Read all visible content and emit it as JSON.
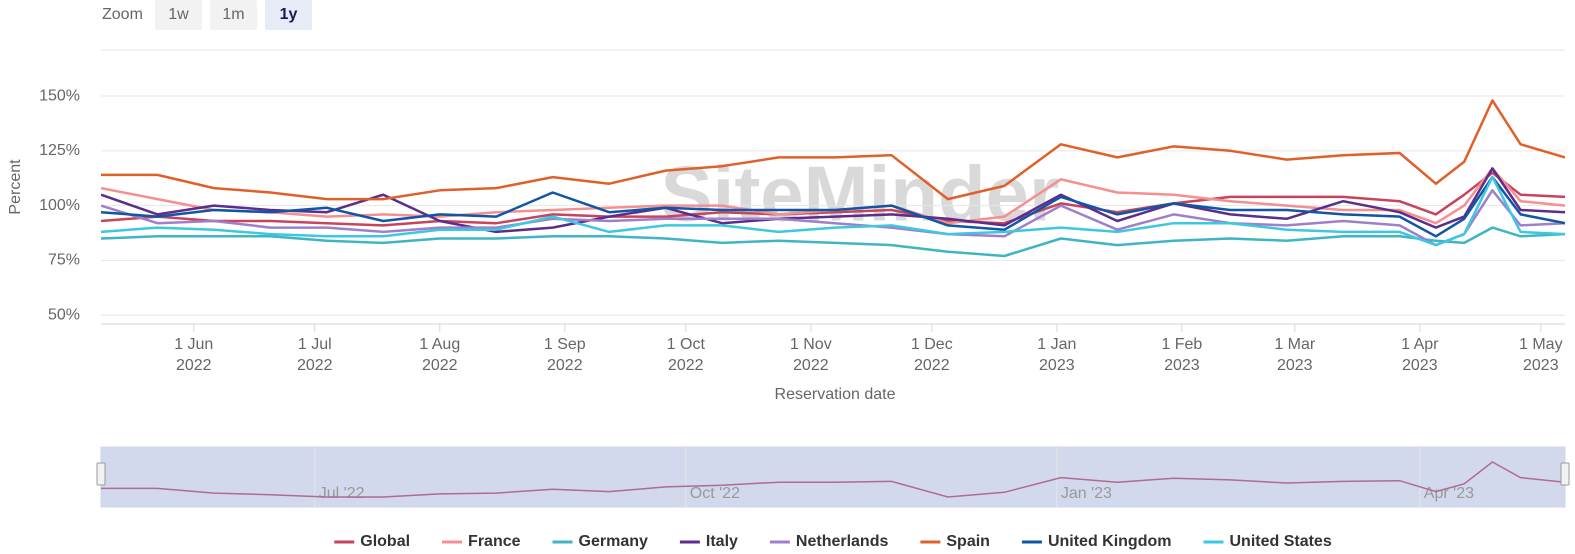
{
  "chart_data": {
    "type": "line",
    "zoom": {
      "label": "Zoom",
      "buttons": [
        "1w",
        "1m",
        "1y"
      ],
      "selected": 2
    },
    "watermark": "SiteMinder",
    "ylabel": "Percent",
    "xlabel": "Reservation date",
    "xlim": [
      "2022-05-09",
      "2023-05-07"
    ],
    "ylim": [
      46,
      171
    ],
    "yticks": [
      {
        "value": 50,
        "label": "50%"
      },
      {
        "value": 75,
        "label": "75%"
      },
      {
        "value": 100,
        "label": "100%"
      },
      {
        "value": 125,
        "label": "125%"
      },
      {
        "value": 150,
        "label": "150%"
      }
    ],
    "xticks": [
      {
        "value": "2022-06-01",
        "label": "1 Jun",
        "sublabel": "2022"
      },
      {
        "value": "2022-07-01",
        "label": "1 Jul",
        "sublabel": "2022"
      },
      {
        "value": "2022-08-01",
        "label": "1 Aug",
        "sublabel": "2022"
      },
      {
        "value": "2022-09-01",
        "label": "1 Sep",
        "sublabel": "2022"
      },
      {
        "value": "2022-10-01",
        "label": "1 Oct",
        "sublabel": "2022"
      },
      {
        "value": "2022-11-01",
        "label": "1 Nov",
        "sublabel": "2022"
      },
      {
        "value": "2022-12-01",
        "label": "1 Dec",
        "sublabel": "2022"
      },
      {
        "value": "2023-01-01",
        "label": "1 Jan",
        "sublabel": "2023"
      },
      {
        "value": "2023-02-01",
        "label": "1 Feb",
        "sublabel": "2023"
      },
      {
        "value": "2023-03-01",
        "label": "1 Mar",
        "sublabel": "2023"
      },
      {
        "value": "2023-04-01",
        "label": "1 Apr",
        "sublabel": "2023"
      },
      {
        "value": "2023-05-01",
        "label": "1 May",
        "sublabel": "2023"
      }
    ],
    "grid": true,
    "legend": "bottom",
    "x": [
      "2022-05-09",
      "2022-05-23",
      "2022-06-06",
      "2022-06-20",
      "2022-07-04",
      "2022-07-18",
      "2022-08-01",
      "2022-08-15",
      "2022-08-29",
      "2022-09-12",
      "2022-09-26",
      "2022-10-10",
      "2022-10-24",
      "2022-11-07",
      "2022-11-21",
      "2022-12-05",
      "2022-12-19",
      "2023-01-02",
      "2023-01-16",
      "2023-01-30",
      "2023-02-13",
      "2023-02-27",
      "2023-03-13",
      "2023-03-27",
      "2023-04-05",
      "2023-04-12",
      "2023-04-19",
      "2023-04-26",
      "2023-05-07"
    ],
    "series": [
      {
        "name": "Global",
        "color": "#c8435c",
        "values": [
          93,
          95,
          93,
          93,
          92,
          91,
          93,
          92,
          96,
          95,
          95,
          97,
          96,
          97,
          98,
          93,
          92,
          101,
          97,
          101,
          104,
          104,
          104,
          102,
          96,
          105,
          115,
          105,
          104
        ]
      },
      {
        "name": "France",
        "color": "#f4908f",
        "values": [
          108,
          103,
          98,
          97,
          95,
          96,
          95,
          97,
          98,
          99,
          100,
          100,
          96,
          98,
          100,
          92,
          95,
          112,
          106,
          105,
          102,
          100,
          98,
          98,
          92,
          100,
          117,
          102,
          100
        ]
      },
      {
        "name": "Germany",
        "color": "#3fb5c4",
        "values": [
          85,
          86,
          86,
          86,
          84,
          83,
          85,
          85,
          86,
          86,
          85,
          83,
          84,
          83,
          82,
          79,
          77,
          85,
          82,
          84,
          85,
          84,
          86,
          86,
          84,
          83,
          90,
          86,
          87
        ]
      },
      {
        "name": "Italy",
        "color": "#5b2d8c",
        "values": [
          105,
          96,
          100,
          98,
          97,
          105,
          93,
          88,
          90,
          95,
          99,
          92,
          94,
          95,
          96,
          94,
          91,
          105,
          93,
          101,
          96,
          94,
          102,
          97,
          90,
          95,
          117,
          98,
          97
        ]
      },
      {
        "name": "Netherlands",
        "color": "#a07fc9",
        "values": [
          100,
          92,
          93,
          90,
          90,
          88,
          90,
          90,
          94,
          93,
          94,
          94,
          94,
          92,
          90,
          87,
          86,
          100,
          89,
          96,
          92,
          91,
          93,
          91,
          82,
          87,
          107,
          91,
          92
        ]
      },
      {
        "name": "Spain",
        "color": "#e0602a",
        "values": [
          114,
          114,
          108,
          106,
          103,
          103,
          107,
          108,
          113,
          110,
          116,
          118,
          122,
          122,
          123,
          103,
          109,
          128,
          122,
          127,
          125,
          121,
          123,
          124,
          110,
          120,
          148,
          128,
          122
        ]
      },
      {
        "name": "United Kingdom",
        "color": "#1155a5",
        "values": [
          97,
          95,
          98,
          97,
          99,
          93,
          96,
          95,
          106,
          97,
          99,
          98,
          98,
          98,
          100,
          91,
          89,
          104,
          96,
          101,
          98,
          98,
          96,
          95,
          86,
          94,
          113,
          96,
          92
        ]
      },
      {
        "name": "United States",
        "color": "#3cc8e0",
        "values": [
          88,
          90,
          89,
          87,
          86,
          86,
          89,
          89,
          95,
          88,
          91,
          91,
          88,
          90,
          91,
          87,
          88,
          90,
          88,
          92,
          92,
          89,
          88,
          88,
          82,
          87,
          113,
          88,
          87
        ]
      }
    ],
    "navigator": {
      "series": 5,
      "color": "#b06a94",
      "ticks": [
        {
          "value": "2022-07-01",
          "label": "Jul '22"
        },
        {
          "value": "2022-10-01",
          "label": "Oct '22"
        },
        {
          "value": "2023-01-01",
          "label": "Jan '23"
        },
        {
          "value": "2023-04-01",
          "label": "Apr '23"
        }
      ]
    }
  }
}
